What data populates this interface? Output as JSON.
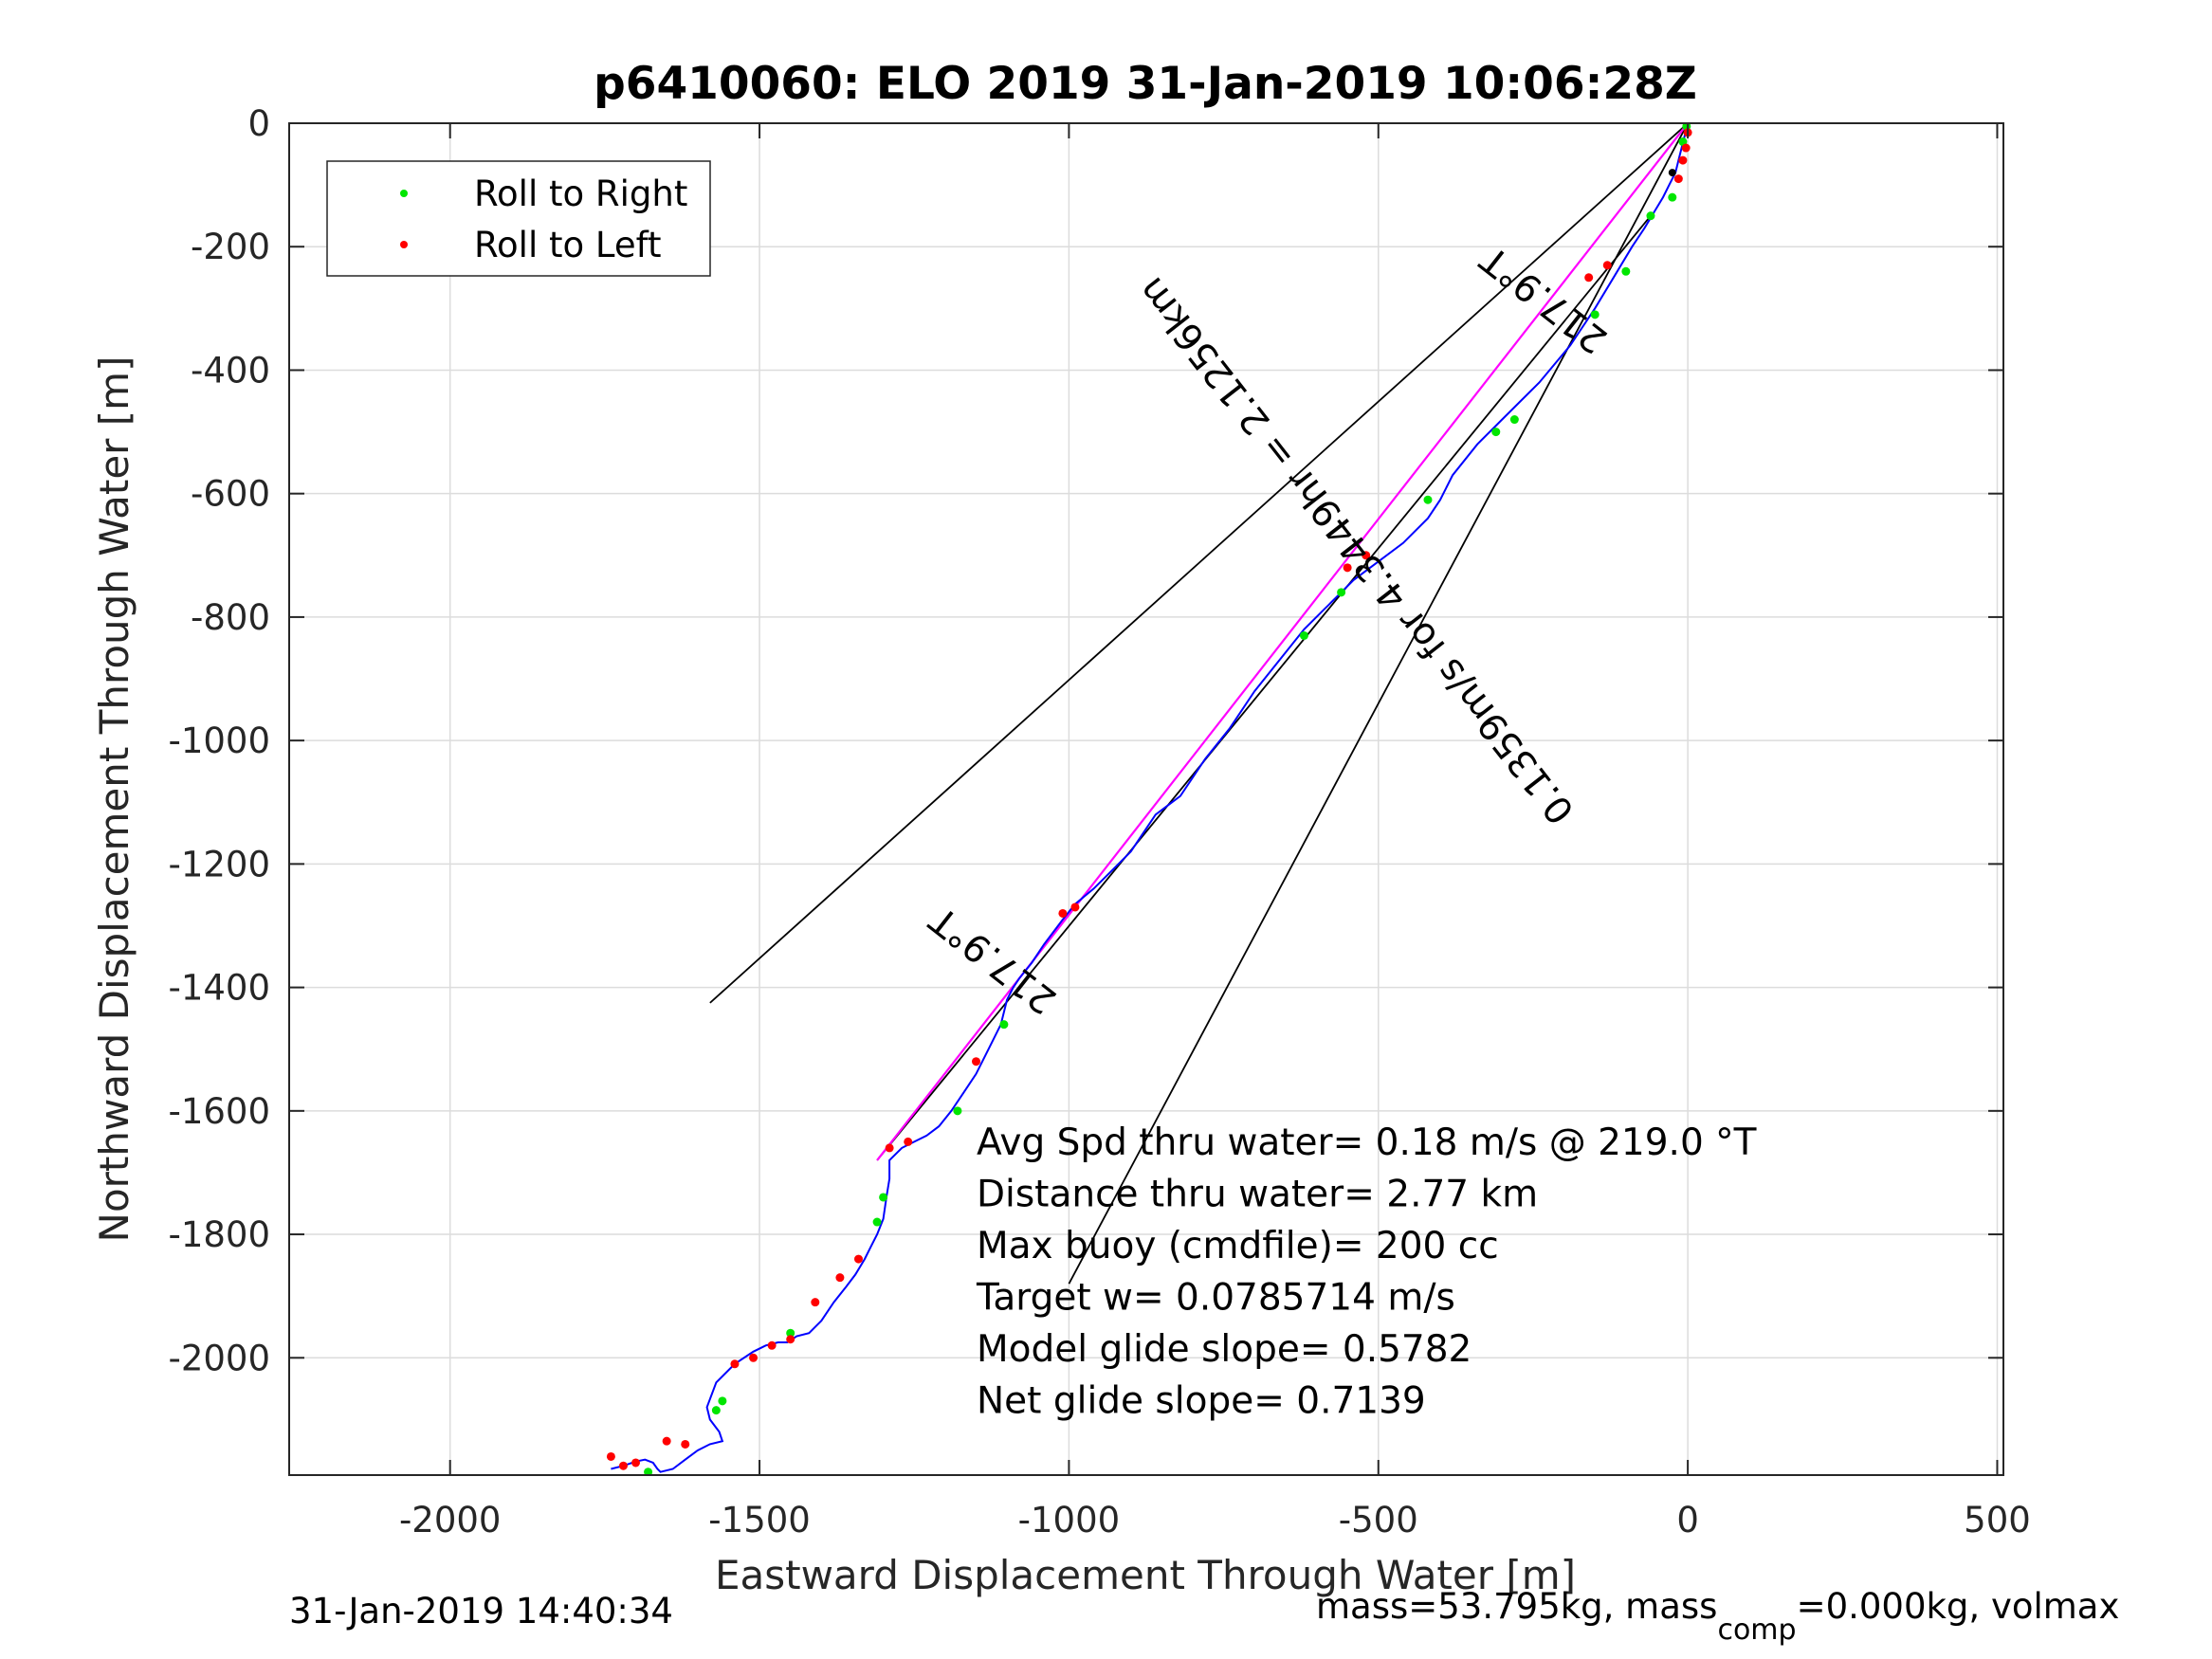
{
  "chart_data": {
    "type": "line",
    "title": "p6410060: ELO 2019 31-Jan-2019 10:06:28Z",
    "xlabel": "Eastward Displacement Through Water [m]",
    "ylabel": "Northward Displacement Through Water [m]",
    "xlim": [
      -2260,
      510
    ],
    "ylim": [
      -2190,
      0
    ],
    "xticks": [
      -2000,
      -1500,
      -1000,
      -500,
      0,
      500
    ],
    "yticks": [
      0,
      -200,
      -400,
      -600,
      -800,
      -1000,
      -1200,
      -1400,
      -1600,
      -1800,
      -2000
    ],
    "grid": true,
    "legend": {
      "placement": "top-left",
      "entries": [
        {
          "label": "Roll to Right",
          "color": "#00e600"
        },
        {
          "label": "Roll to Left",
          "color": "#ff0000"
        }
      ]
    },
    "track": {
      "name": "track",
      "color": "#0000ff",
      "x": [
        0,
        -5,
        -10,
        -15,
        -20,
        -30,
        -40,
        -55,
        -70,
        -90,
        -120,
        -150,
        -190,
        -240,
        -290,
        -340,
        -380,
        -400,
        -420,
        -460,
        -500,
        -540,
        -580,
        -620,
        -660,
        -700,
        -740,
        -780,
        -820,
        -860,
        -880,
        -900,
        -930,
        -960,
        -990,
        -1010,
        -1040,
        -1060,
        -1080,
        -1090,
        -1100,
        -1110,
        -1130,
        -1150,
        -1170,
        -1190,
        -1210,
        -1230,
        -1250,
        -1270,
        -1290,
        -1290,
        -1295,
        -1300,
        -1310,
        -1320,
        -1330,
        -1345,
        -1360,
        -1380,
        -1400,
        -1420,
        -1440,
        -1455,
        -1470,
        -1490,
        -1510,
        -1540,
        -1570,
        -1585,
        -1580,
        -1565,
        -1560,
        -1580,
        -1600,
        -1620,
        -1640,
        -1660,
        -1665,
        -1672,
        -1685,
        -1700,
        -1720,
        -1740
      ],
      "y": [
        0,
        -20,
        -40,
        -60,
        -80,
        -100,
        -120,
        -145,
        -170,
        -200,
        -250,
        -300,
        -360,
        -420,
        -470,
        -520,
        -570,
        -610,
        -640,
        -680,
        -710,
        -740,
        -780,
        -820,
        -870,
        -920,
        -980,
        -1030,
        -1090,
        -1120,
        -1150,
        -1180,
        -1210,
        -1240,
        -1265,
        -1290,
        -1330,
        -1360,
        -1385,
        -1400,
        -1420,
        -1460,
        -1500,
        -1540,
        -1570,
        -1600,
        -1625,
        -1640,
        -1650,
        -1660,
        -1680,
        -1710,
        -1740,
        -1775,
        -1800,
        -1820,
        -1840,
        -1865,
        -1885,
        -1910,
        -1940,
        -1960,
        -1965,
        -1975,
        -1975,
        -1980,
        -1990,
        -2010,
        -2040,
        -2080,
        -2100,
        -2120,
        -2135,
        -2140,
        -2150,
        -2165,
        -2180,
        -2185,
        -2180,
        -2170,
        -2165,
        -2168,
        -2175,
        -2180
      ]
    },
    "roll_right": {
      "name": "Roll to Right",
      "color": "#00e600",
      "x": [
        -2,
        -8,
        -25,
        -60,
        -100,
        -150,
        -280,
        -310,
        -420,
        -560,
        -620,
        -1105,
        -1180,
        -1300,
        -1310,
        -1450,
        -1560,
        -1570,
        -1680
      ],
      "y": [
        -5,
        -30,
        -120,
        -150,
        -240,
        -310,
        -480,
        -500,
        -610,
        -760,
        -830,
        -1460,
        -1600,
        -1740,
        -1780,
        -1960,
        -2070,
        -2085,
        -2185
      ]
    },
    "roll_left": {
      "name": "Roll to Left",
      "color": "#ff0000",
      "x": [
        0,
        -3,
        -8,
        -15,
        -130,
        -160,
        -520,
        -550,
        -990,
        -1010,
        -1150,
        -1260,
        -1290,
        -1340,
        -1370,
        -1410,
        -1450,
        -1480,
        -1510,
        -1540,
        -1620,
        -1650,
        -1700,
        -1720,
        -1740
      ],
      "y": [
        -15,
        -40,
        -60,
        -90,
        -230,
        -250,
        -700,
        -720,
        -1270,
        -1280,
        -1520,
        -1650,
        -1660,
        -1840,
        -1870,
        -1910,
        -1970,
        -1980,
        -2000,
        -2010,
        -2140,
        -2135,
        -2170,
        -2175,
        -2160
      ]
    },
    "black_marker": {
      "x": -25,
      "y": -80,
      "color": "#000000"
    },
    "target_line": {
      "color": "#ff00ff",
      "x": [
        0,
        -1310
      ],
      "y": [
        0,
        -1680
      ]
    },
    "cone_lines": [
      {
        "color": "#000000",
        "x": [
          0,
          -1580
        ],
        "y": [
          0,
          -1425
        ]
      },
      {
        "color": "#000000",
        "x": [
          0,
          -1000
        ],
        "y": [
          0,
          -1880
        ]
      },
      {
        "color": "#000000",
        "x": [
          -60,
          -1310
        ],
        "y": [
          -150,
          -1680
        ]
      }
    ],
    "annotations": [
      {
        "text": "217.9°T",
        "x": -1110,
        "y": -1340,
        "rotation": 218
      },
      {
        "text": "217.9°T",
        "x": -220,
        "y": -270,
        "rotation": 218
      },
      {
        "text": "0.1359m/s for 4.3449hr = 2.1256km",
        "x": -520,
        "y": -680,
        "rotation": 232
      }
    ],
    "stats": [
      "Avg Spd thru water=  0.18 m/s @ 219.0 °T",
      "Distance thru water=  2.77 km",
      "Max buoy (cmdfile)= 200 cc",
      "Target w= 0.0785714 m/s",
      "Model glide slope= 0.5782",
      "Net glide slope= 0.7139"
    ]
  },
  "footer": {
    "timestamp": "31-Jan-2019 14:40:34",
    "mass_text": "mass=53.795kg, mass",
    "mass_sub": "comp",
    "mass_rest": "=0.000kg, volmax"
  }
}
